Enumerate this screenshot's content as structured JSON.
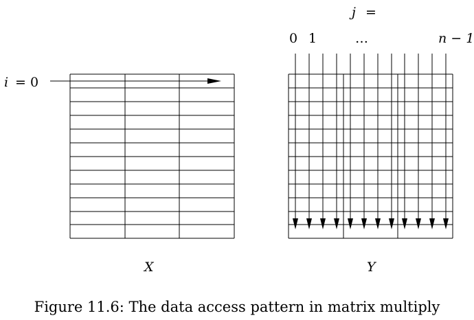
{
  "labels": {
    "j_label": "j",
    "j_equals": "=",
    "col_first": "0",
    "col_second": "1",
    "col_ellipsis": "…",
    "col_last": "n − 1",
    "i_label": "i",
    "i_equals": "= 0",
    "matrix_x": "X",
    "matrix_y": "Y"
  },
  "caption": "Figure 11.6: The data access pattern in matrix multiply"
}
